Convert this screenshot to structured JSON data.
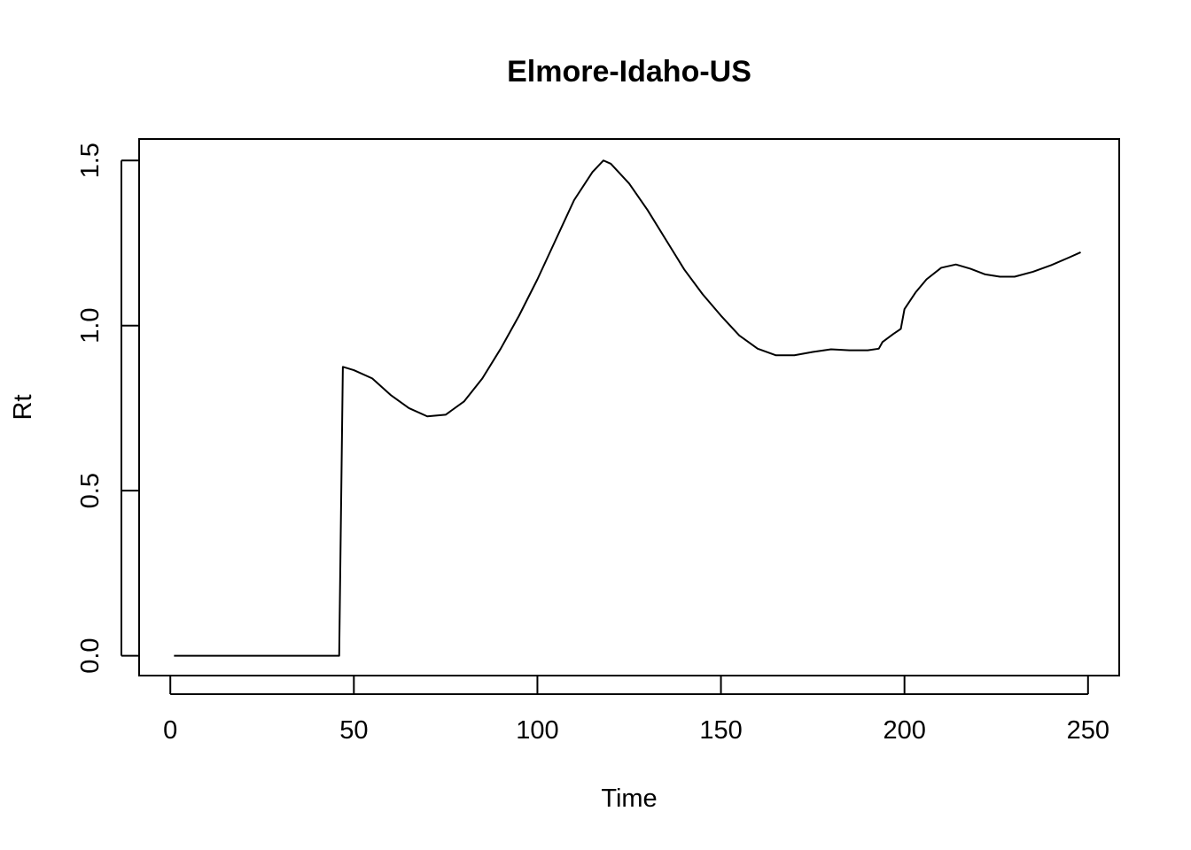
{
  "chart_data": {
    "type": "line",
    "title": "Elmore-Idaho-US",
    "xlabel": "Time",
    "ylabel": "Rt",
    "xlim": [
      -8.5,
      258.5
    ],
    "ylim": [
      -0.06,
      1.565
    ],
    "xticks": [
      0,
      50,
      100,
      150,
      200,
      250
    ],
    "yticks": [
      0.0,
      0.5,
      1.0,
      1.5
    ],
    "xtick_labels": [
      "0",
      "50",
      "100",
      "150",
      "200",
      "250"
    ],
    "ytick_labels": [
      "0.0",
      "0.5",
      "1.0",
      "1.5"
    ],
    "grid": false,
    "legend": "none",
    "series": [
      {
        "x": [
          1,
          10,
          20,
          30,
          40,
          46,
          47,
          50,
          55,
          60,
          65,
          70,
          75,
          80,
          85,
          90,
          95,
          100,
          105,
          110,
          115,
          118,
          120,
          125,
          130,
          135,
          140,
          145,
          150,
          155,
          160,
          165,
          170,
          175,
          180,
          185,
          190,
          193,
          194,
          197,
          199,
          200,
          203,
          206,
          210,
          214,
          218,
          222,
          226,
          230,
          235,
          240,
          245,
          248
        ],
        "y": [
          0,
          0,
          0,
          0,
          0,
          0,
          0.875,
          0.865,
          0.84,
          0.79,
          0.75,
          0.725,
          0.73,
          0.77,
          0.84,
          0.93,
          1.03,
          1.14,
          1.26,
          1.38,
          1.465,
          1.5,
          1.49,
          1.43,
          1.35,
          1.26,
          1.17,
          1.095,
          1.03,
          0.97,
          0.93,
          0.91,
          0.91,
          0.92,
          0.928,
          0.925,
          0.925,
          0.93,
          0.95,
          0.975,
          0.99,
          1.05,
          1.1,
          1.14,
          1.175,
          1.185,
          1.172,
          1.155,
          1.148,
          1.148,
          1.163,
          1.183,
          1.207,
          1.222
        ]
      }
    ]
  }
}
